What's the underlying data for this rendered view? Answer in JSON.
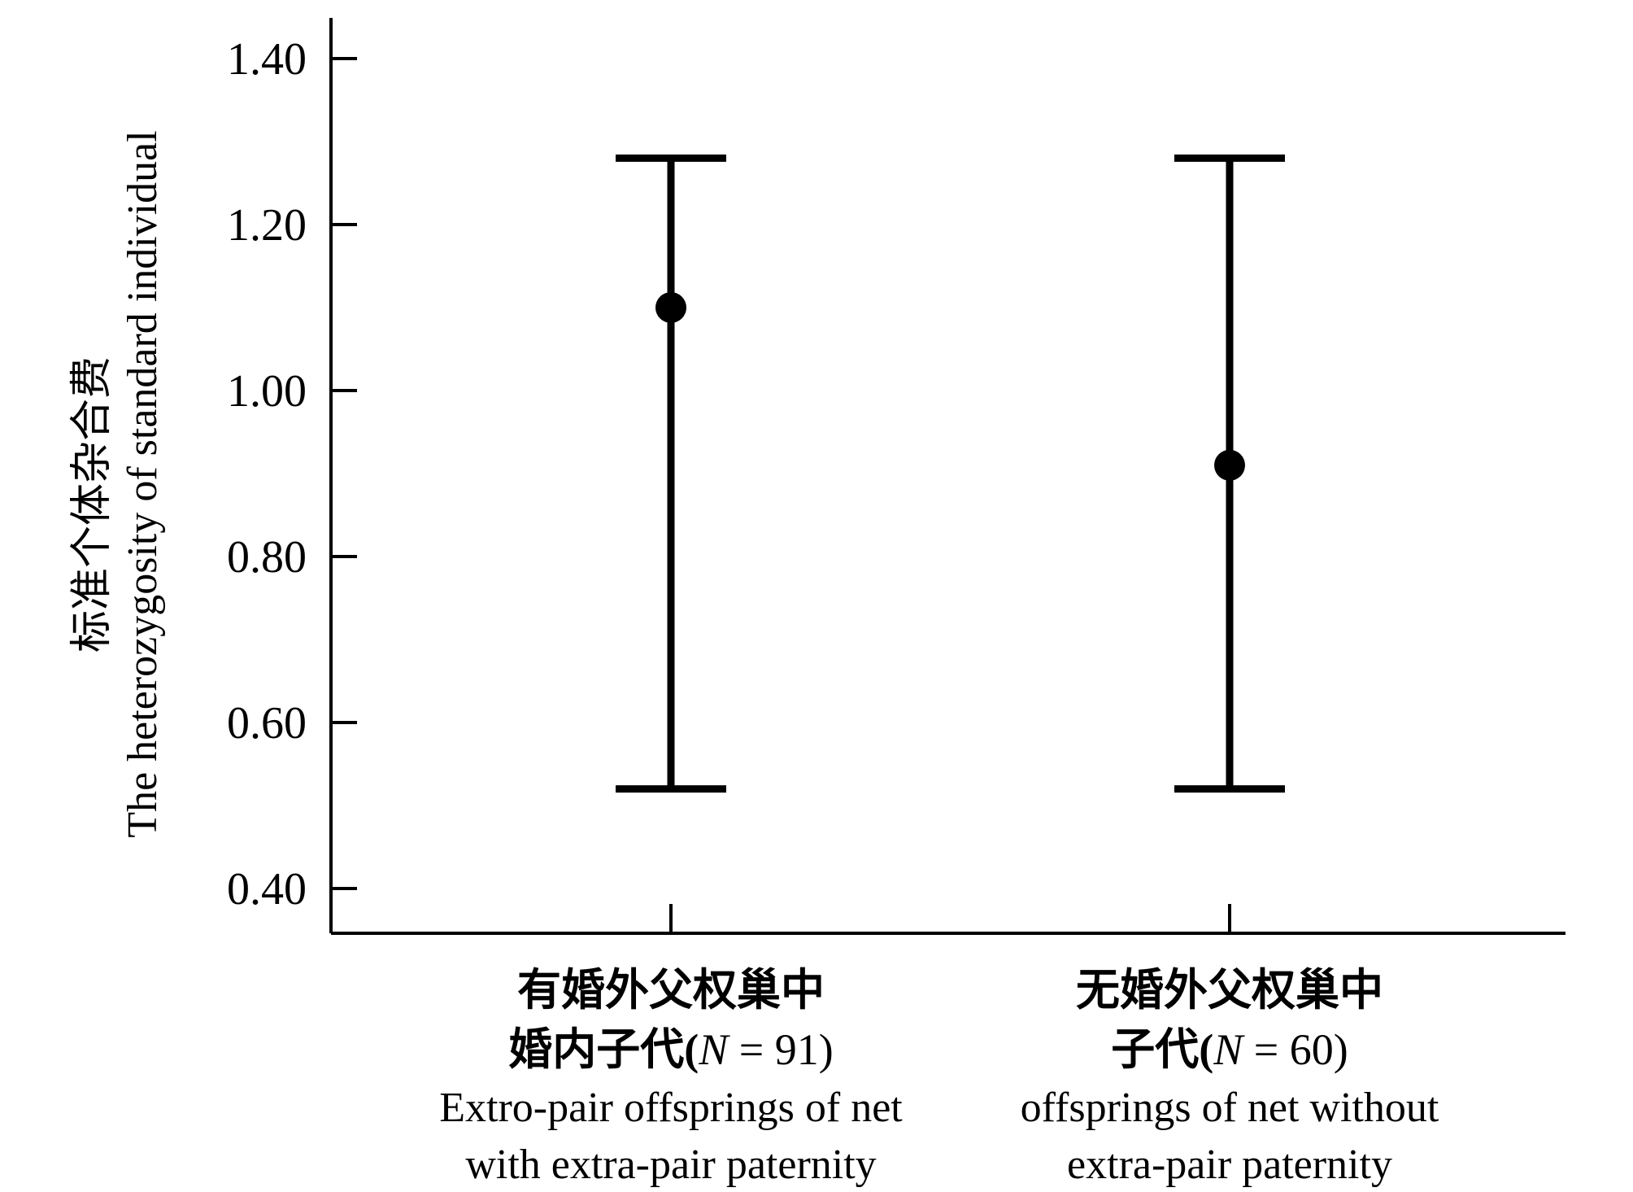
{
  "chart_data": {
    "type": "errorbar",
    "ylabel_zh": "标准个体杂合费",
    "ylabel_en": "The heterozygosity of standard individual",
    "ylim": [
      0.35,
      1.45
    ],
    "yticks": [
      0.4,
      0.6,
      0.8,
      1.0,
      1.2,
      1.4
    ],
    "ytick_labels": [
      "0.40",
      "0.60",
      "0.80",
      "1.00",
      "1.20",
      "1.40"
    ],
    "grid": false,
    "categories": [
      {
        "label_zh_line1": "有婚外父权巢中",
        "label_zh_line2": "婚内子代(",
        "n_italic": "N",
        "n_rest": " = 91)",
        "label_en_line1": "Extro-pair offsprings of net",
        "label_en_line2": "with extra-pair paternity"
      },
      {
        "label_zh_line1": "无婚外父权巢中",
        "label_zh_line2": "子代(",
        "n_italic": "N",
        "n_rest": " = 60)",
        "label_en_line1": "offsprings of net without",
        "label_en_line2": "extra-pair paternity"
      }
    ],
    "series": [
      {
        "mean": [
          1.1,
          0.91
        ],
        "upper": [
          1.28,
          1.28
        ],
        "lower": [
          0.52,
          0.52
        ]
      }
    ]
  }
}
